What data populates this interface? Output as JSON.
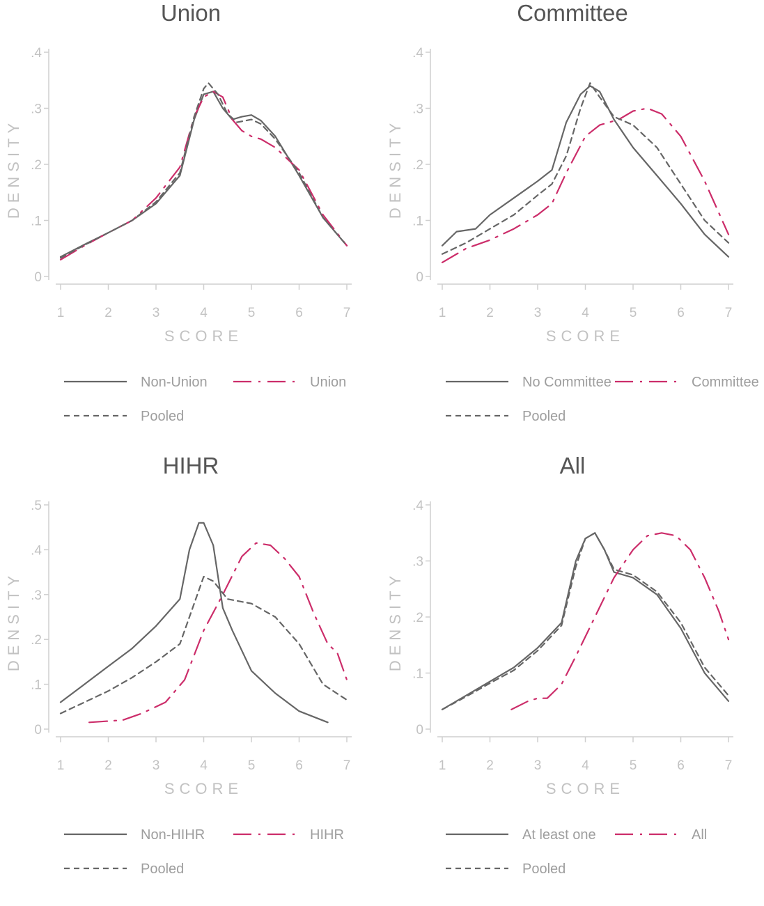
{
  "chart_data": [
    {
      "type": "line",
      "title": "Union",
      "xlabel": "SCORE",
      "ylabel": "DENSITY",
      "xlim": [
        1,
        7
      ],
      "ylim": [
        0,
        0.4
      ],
      "xticks": [
        "1",
        "2",
        "3",
        "4",
        "5",
        "6",
        "7"
      ],
      "yticks": [
        {
          "v": 0,
          "label": "0"
        },
        {
          "v": 0.1,
          "label": ".1"
        },
        {
          "v": 0.2,
          "label": ".2"
        },
        {
          "v": 0.3,
          "label": ".3"
        },
        {
          "v": 0.4,
          "label": ".4"
        }
      ],
      "legend_position": "bottom",
      "series": [
        {
          "name": "Non-Union",
          "color": "#666666",
          "style": "solid",
          "x": [
            1,
            1.5,
            2,
            2.5,
            3,
            3.5,
            3.8,
            4.0,
            4.2,
            4.4,
            4.6,
            4.8,
            5.0,
            5.2,
            5.5,
            6.0,
            6.5,
            7.0
          ],
          "y": [
            0.035,
            0.057,
            0.078,
            0.1,
            0.13,
            0.18,
            0.28,
            0.325,
            0.33,
            0.3,
            0.28,
            0.285,
            0.288,
            0.278,
            0.25,
            0.18,
            0.105,
            0.055
          ]
        },
        {
          "name": "Union",
          "color": "#cc2d6a",
          "style": "dashdot",
          "x": [
            1,
            1.5,
            2,
            2.5,
            3,
            3.5,
            3.8,
            4.0,
            4.2,
            4.4,
            4.6,
            4.8,
            5.0,
            5.2,
            5.5,
            6.0,
            6.5,
            7.0
          ],
          "y": [
            0.03,
            0.055,
            0.078,
            0.1,
            0.14,
            0.195,
            0.285,
            0.32,
            0.33,
            0.32,
            0.28,
            0.26,
            0.25,
            0.245,
            0.23,
            0.19,
            0.11,
            0.055
          ]
        },
        {
          "name": "Pooled",
          "color": "#666666",
          "style": "dashed",
          "x": [
            1,
            1.5,
            2,
            2.5,
            3,
            3.5,
            3.8,
            4.0,
            4.1,
            4.3,
            4.5,
            4.7,
            5.0,
            5.2,
            5.5,
            6.0,
            6.5,
            7.0
          ],
          "y": [
            0.033,
            0.056,
            0.078,
            0.1,
            0.133,
            0.185,
            0.285,
            0.335,
            0.345,
            0.325,
            0.29,
            0.275,
            0.28,
            0.272,
            0.245,
            0.185,
            0.105,
            0.055
          ]
        }
      ]
    },
    {
      "type": "line",
      "title": "Committee",
      "xlabel": "SCORE",
      "ylabel": "DENSITY",
      "xlim": [
        1,
        7
      ],
      "ylim": [
        0,
        0.4
      ],
      "xticks": [
        "1",
        "2",
        "3",
        "4",
        "5",
        "6",
        "7"
      ],
      "yticks": [
        {
          "v": 0,
          "label": "0"
        },
        {
          "v": 0.1,
          "label": ".1"
        },
        {
          "v": 0.2,
          "label": ".2"
        },
        {
          "v": 0.3,
          "label": ".3"
        },
        {
          "v": 0.4,
          "label": ".4"
        }
      ],
      "legend_position": "bottom",
      "series": [
        {
          "name": "No Committee",
          "color": "#666666",
          "style": "solid",
          "x": [
            1,
            1.3,
            1.7,
            2,
            2.5,
            3,
            3.3,
            3.6,
            3.9,
            4.1,
            4.3,
            4.6,
            5.0,
            5.5,
            6.0,
            6.5,
            7.0
          ],
          "y": [
            0.055,
            0.08,
            0.085,
            0.11,
            0.14,
            0.17,
            0.19,
            0.275,
            0.325,
            0.34,
            0.33,
            0.28,
            0.23,
            0.18,
            0.13,
            0.075,
            0.035
          ]
        },
        {
          "name": "Committee",
          "color": "#cc2d6a",
          "style": "dashdot",
          "x": [
            1,
            1.5,
            2,
            2.5,
            3,
            3.3,
            3.6,
            4.0,
            4.3,
            4.7,
            5.0,
            5.3,
            5.6,
            6.0,
            6.5,
            7.0
          ],
          "y": [
            0.025,
            0.05,
            0.065,
            0.085,
            0.11,
            0.13,
            0.185,
            0.25,
            0.27,
            0.28,
            0.295,
            0.3,
            0.29,
            0.25,
            0.17,
            0.075
          ]
        },
        {
          "name": "Pooled",
          "color": "#666666",
          "style": "dashed",
          "x": [
            1,
            1.5,
            2,
            2.5,
            3,
            3.3,
            3.6,
            3.9,
            4.1,
            4.3,
            4.6,
            5.0,
            5.5,
            6.0,
            6.5,
            7.0
          ],
          "y": [
            0.04,
            0.06,
            0.085,
            0.11,
            0.145,
            0.165,
            0.215,
            0.3,
            0.345,
            0.32,
            0.285,
            0.27,
            0.23,
            0.165,
            0.1,
            0.06
          ]
        }
      ]
    },
    {
      "type": "line",
      "title": "HIHR",
      "xlabel": "SCORE",
      "ylabel": "DENSITY",
      "xlim": [
        1,
        7
      ],
      "ylim": [
        0,
        0.5
      ],
      "xticks": [
        "1",
        "2",
        "3",
        "4",
        "5",
        "6",
        "7"
      ],
      "yticks": [
        {
          "v": 0,
          "label": "0"
        },
        {
          "v": 0.1,
          "label": ".1"
        },
        {
          "v": 0.2,
          "label": ".2"
        },
        {
          "v": 0.3,
          "label": ".3"
        },
        {
          "v": 0.4,
          "label": ".4"
        },
        {
          "v": 0.5,
          "label": ".5"
        }
      ],
      "legend_position": "bottom",
      "series": [
        {
          "name": "Non-HIHR",
          "color": "#666666",
          "style": "solid",
          "x": [
            1,
            1.5,
            2,
            2.5,
            3,
            3.5,
            3.7,
            3.9,
            4.0,
            4.2,
            4.4,
            4.6,
            5.0,
            5.5,
            6.0,
            6.6
          ],
          "y": [
            0.06,
            0.1,
            0.14,
            0.18,
            0.23,
            0.29,
            0.4,
            0.46,
            0.46,
            0.41,
            0.27,
            0.22,
            0.13,
            0.08,
            0.04,
            0.015
          ]
        },
        {
          "name": "HIHR",
          "color": "#cc2d6a",
          "style": "dashdot",
          "x": [
            1.6,
            2.3,
            2.7,
            3.2,
            3.6,
            4.0,
            4.4,
            4.8,
            5.1,
            5.4,
            5.7,
            6.0,
            6.3,
            6.6,
            6.8,
            7.0
          ],
          "y": [
            0.015,
            0.02,
            0.035,
            0.06,
            0.11,
            0.22,
            0.3,
            0.385,
            0.415,
            0.41,
            0.38,
            0.34,
            0.26,
            0.19,
            0.17,
            0.11
          ]
        },
        {
          "name": "Pooled",
          "color": "#666666",
          "style": "dashed",
          "x": [
            1,
            1.5,
            2,
            2.5,
            3,
            3.5,
            3.8,
            4.0,
            4.2,
            4.5,
            5.0,
            5.5,
            6.0,
            6.5,
            7.0
          ],
          "y": [
            0.035,
            0.06,
            0.085,
            0.115,
            0.15,
            0.19,
            0.28,
            0.34,
            0.33,
            0.29,
            0.28,
            0.25,
            0.19,
            0.1,
            0.065
          ]
        }
      ]
    },
    {
      "type": "line",
      "title": "All",
      "xlabel": "SCORE",
      "ylabel": "DENSITY",
      "xlim": [
        1,
        7
      ],
      "ylim": [
        0,
        0.4
      ],
      "xticks": [
        "1",
        "2",
        "3",
        "4",
        "5",
        "6",
        "7"
      ],
      "yticks": [
        {
          "v": 0,
          "label": "0"
        },
        {
          "v": 0.1,
          "label": ".1"
        },
        {
          "v": 0.2,
          "label": ".2"
        },
        {
          "v": 0.3,
          "label": ".3"
        },
        {
          "v": 0.4,
          "label": ".4"
        }
      ],
      "legend_position": "bottom",
      "series": [
        {
          "name": "At least one",
          "color": "#666666",
          "style": "solid",
          "x": [
            1,
            1.5,
            2,
            2.5,
            3,
            3.5,
            3.8,
            4.0,
            4.2,
            4.4,
            4.6,
            5.0,
            5.5,
            6.0,
            6.5,
            7.0
          ],
          "y": [
            0.035,
            0.06,
            0.085,
            0.11,
            0.145,
            0.19,
            0.3,
            0.34,
            0.35,
            0.32,
            0.28,
            0.27,
            0.24,
            0.18,
            0.1,
            0.05
          ]
        },
        {
          "name": "All",
          "color": "#cc2d6a",
          "style": "dashdot",
          "x": [
            2.45,
            2.8,
            3.0,
            3.2,
            3.5,
            3.8,
            4.2,
            4.6,
            5.0,
            5.3,
            5.6,
            5.9,
            6.2,
            6.5,
            6.8,
            7.0
          ],
          "y": [
            0.035,
            0.05,
            0.055,
            0.055,
            0.08,
            0.13,
            0.2,
            0.27,
            0.32,
            0.345,
            0.35,
            0.345,
            0.32,
            0.27,
            0.21,
            0.16
          ]
        },
        {
          "name": "Pooled",
          "color": "#666666",
          "style": "dashed",
          "x": [
            1,
            1.5,
            2,
            2.5,
            3,
            3.5,
            3.8,
            4.0,
            4.2,
            4.4,
            4.6,
            5.0,
            5.5,
            6.0,
            6.5,
            7.0
          ],
          "y": [
            0.035,
            0.058,
            0.082,
            0.105,
            0.14,
            0.185,
            0.29,
            0.34,
            0.35,
            0.32,
            0.285,
            0.275,
            0.245,
            0.19,
            0.11,
            0.06
          ]
        }
      ]
    }
  ]
}
